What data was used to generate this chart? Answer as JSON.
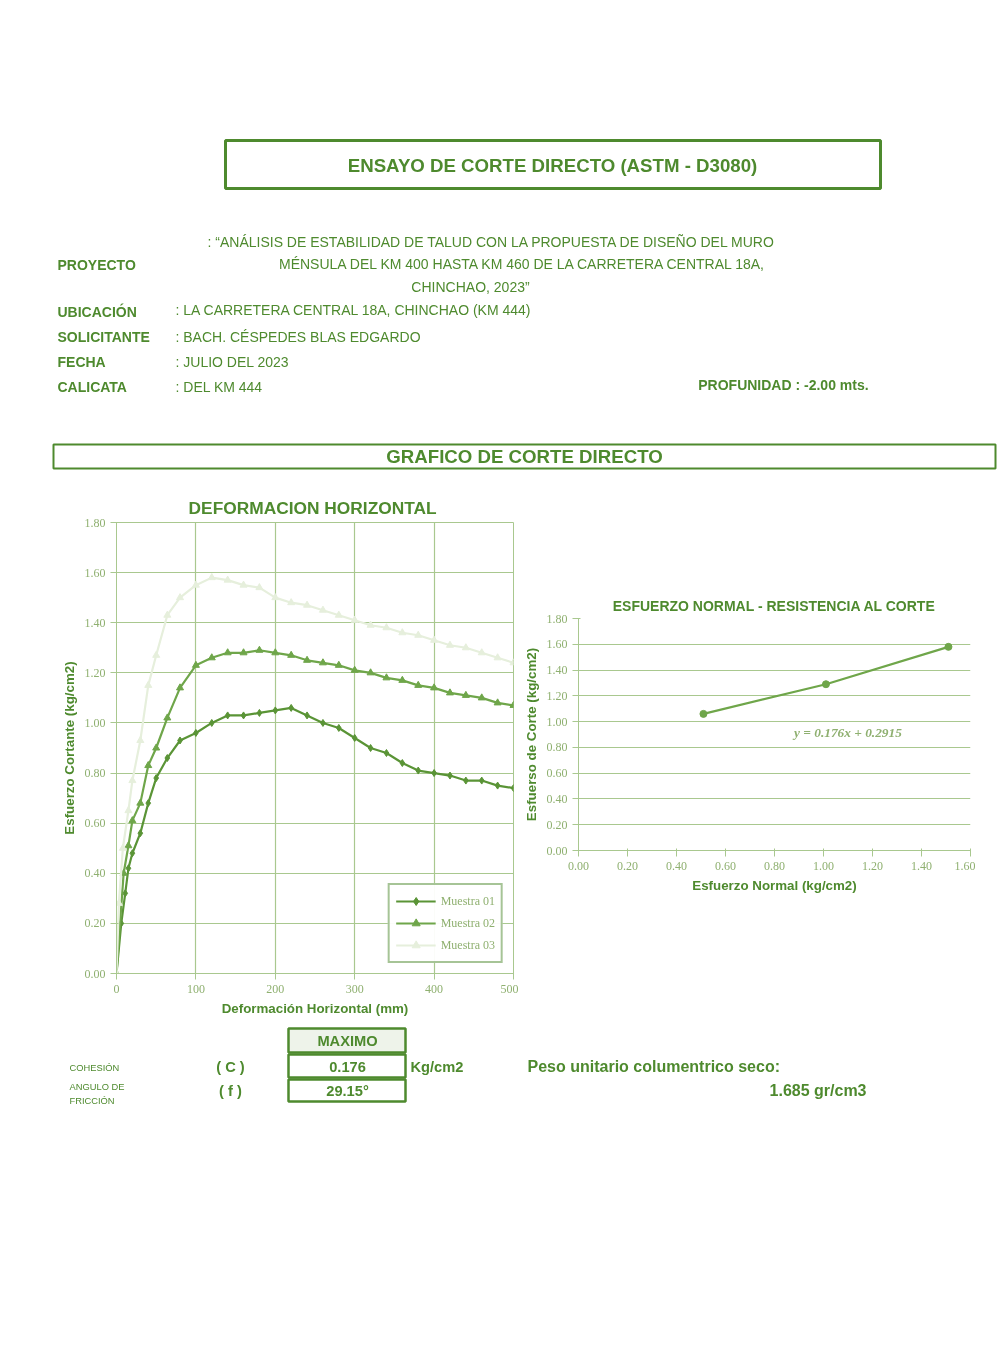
{
  "chart_data": [
    {
      "type": "other",
      "title": "ENSAYO DE CORTE DIRECTO (ASTM - D3080)",
      "subtitle": "GRAFICO DE CORTE DIRECTO",
      "annotations": [
        "PROYECTO",
        ": “ANÁLISIS DE ESTABILIDAD DE TALUD CON LA PROPUESTA DE DISEÑO DEL MURO",
        "MÉNSULA  DEL KM 400 HASTA KM 460 DE LA CARRETERA CENTRAL 18A,",
        "CHINCHAO, 2023”",
        "UBICACIÓN",
        ":  LA CARRETERA CENTRAL 18A, CHINCHAO (KM 444)",
        "SOLICITANTE",
        ": BACH. CÉSPEDES BLAS EDGARDO",
        "FECHA",
        ": JULIO DEL 2023",
        "CALICATA",
        ":  DEL KM 444",
        "PROFUNIDAD : -2.00  mts."
      ]
    },
    {
      "type": "line",
      "title": "DEFORMACION  HORIZONTAL",
      "xlabel": "Deformación Horizontal (mm)",
      "ylabel": "Esfuerzo Cortante (kg/cm2)",
      "xlim": [
        0,
        500
      ],
      "xticks": [
        0,
        100,
        200,
        300,
        400,
        500
      ],
      "ylim": [
        0,
        1.8
      ],
      "yticks": [
        {
          "value": 0,
          "label": "0.00"
        },
        {
          "value": 0.2,
          "label": "0.20"
        },
        {
          "value": 0.4,
          "label": "0.40"
        },
        {
          "value": 0.6,
          "label": "0.60"
        },
        {
          "value": 0.8,
          "label": "0.80"
        },
        {
          "value": 1.0,
          "label": "1.00"
        },
        {
          "value": 1.2,
          "label": "1.20"
        },
        {
          "value": 1.4,
          "label": "1.40"
        },
        {
          "value": 1.6,
          "label": "1.60"
        },
        {
          "value": 1.8,
          "label": "1.80"
        }
      ],
      "grid": true,
      "legend": "bottom right",
      "series": [
        {
          "name": "Muestra 01",
          "color": "#5a9436",
          "marker": "diamond",
          "x": [
            0,
            6,
            11,
            15,
            20,
            30,
            40,
            50,
            64,
            80,
            100,
            120,
            140,
            160,
            180,
            200,
            220,
            240,
            260,
            280,
            300,
            320,
            340,
            360,
            380,
            400,
            420,
            440,
            460,
            480,
            500
          ],
          "values": [
            0,
            0.2,
            0.32,
            0.42,
            0.48,
            0.56,
            0.68,
            0.78,
            0.86,
            0.93,
            0.96,
            1.0,
            1.03,
            1.03,
            1.04,
            1.05,
            1.06,
            1.03,
            1.0,
            0.98,
            0.94,
            0.9,
            0.88,
            0.84,
            0.81,
            0.8,
            0.79,
            0.77,
            0.77,
            0.75,
            0.74
          ]
        },
        {
          "name": "Muestra 02",
          "color": "#6fa64a",
          "marker": "triangle",
          "x": [
            0,
            9,
            15,
            20,
            30,
            40,
            50,
            64,
            80,
            100,
            120,
            140,
            160,
            180,
            200,
            220,
            240,
            260,
            280,
            300,
            320,
            340,
            360,
            380,
            400,
            420,
            440,
            460,
            480,
            500
          ],
          "values": [
            0,
            0.4,
            0.51,
            0.61,
            0.68,
            0.83,
            0.9,
            1.02,
            1.14,
            1.23,
            1.26,
            1.28,
            1.28,
            1.29,
            1.28,
            1.27,
            1.25,
            1.24,
            1.23,
            1.21,
            1.2,
            1.18,
            1.17,
            1.15,
            1.14,
            1.12,
            1.11,
            1.1,
            1.08,
            1.07
          ]
        },
        {
          "name": "Muestra 03",
          "color": "#e6efdc",
          "marker": "triangle",
          "x": [
            0,
            3,
            8,
            15,
            20,
            30,
            40,
            50,
            64,
            80,
            100,
            120,
            140,
            160,
            180,
            200,
            220,
            240,
            260,
            280,
            300,
            320,
            340,
            360,
            380,
            400,
            420,
            440,
            460,
            480,
            500
          ],
          "values": [
            0,
            0.28,
            0.5,
            0.65,
            0.77,
            0.93,
            1.15,
            1.27,
            1.43,
            1.5,
            1.55,
            1.58,
            1.57,
            1.55,
            1.54,
            1.5,
            1.48,
            1.47,
            1.45,
            1.43,
            1.41,
            1.39,
            1.38,
            1.36,
            1.35,
            1.33,
            1.31,
            1.3,
            1.28,
            1.26,
            1.24
          ]
        }
      ]
    },
    {
      "type": "line",
      "title": "ESFUERZO NORMAL - RESISTENCIA AL CORTE",
      "xlabel": "Esfuerzo Normal (kg/cm2)",
      "ylabel": "Esfuerso de Corte (kg/cm2)",
      "xlim": [
        0,
        1.6
      ],
      "xticks": [
        {
          "value": 0,
          "label": "0.00"
        },
        {
          "value": 0.2,
          "label": "0.20"
        },
        {
          "value": 0.4,
          "label": "0.40"
        },
        {
          "value": 0.6,
          "label": "0.60"
        },
        {
          "value": 0.8,
          "label": "0.80"
        },
        {
          "value": 1.0,
          "label": "1.00"
        },
        {
          "value": 1.2,
          "label": "1.20"
        },
        {
          "value": 1.4,
          "label": "1.40"
        },
        {
          "value": 1.6,
          "label": "1.60"
        }
      ],
      "ylim": [
        0,
        1.8
      ],
      "yticks": [
        {
          "value": 0,
          "label": "0.00"
        },
        {
          "value": 0.2,
          "label": "0.20"
        },
        {
          "value": 0.4,
          "label": "0.40"
        },
        {
          "value": 0.6,
          "label": "0.60"
        },
        {
          "value": 0.8,
          "label": "0.80"
        },
        {
          "value": 1.0,
          "label": "1.00"
        },
        {
          "value": 1.2,
          "label": "1.20"
        },
        {
          "value": 1.4,
          "label": "1.40"
        },
        {
          "value": 1.6,
          "label": "1.60"
        },
        {
          "value": 1.8,
          "label": "1.80"
        }
      ],
      "grid": "y",
      "marker": "circle",
      "annotations": [
        "y = 0.176x + 0.2915"
      ],
      "series": [
        {
          "color": "#6fa64a",
          "x": [
            0.51,
            1.01,
            1.51
          ],
          "values": [
            1.06,
            1.29,
            1.58
          ]
        }
      ]
    },
    {
      "type": "other",
      "annotations": [
        "MAXIMO",
        "COHESIÓN",
        "( C )",
        "0.176",
        "Kg/cm2",
        "ANGULO DE",
        "FRICCIÓN",
        "( f )",
        "29.15°",
        "Peso unitario columentrico seco:",
        "1.685 gr/cm3"
      ]
    }
  ]
}
